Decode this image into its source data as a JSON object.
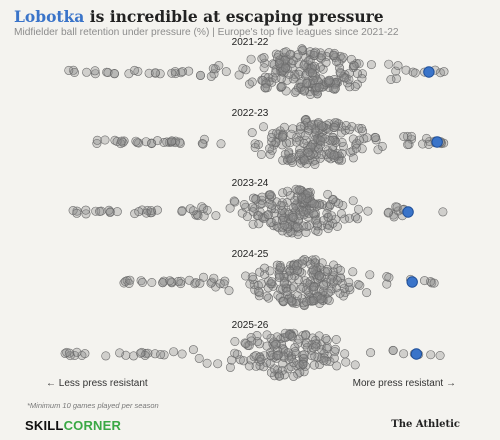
{
  "header": {
    "title_highlight": "Lobotka",
    "title_rest": " is incredible at escaping pressure",
    "subtitle": "Midfielder ball retention under pressure (%) | Europe's top five leagues since 2021-22"
  },
  "colors": {
    "highlight": "#3a74c9",
    "dots": "#7a7a7a",
    "background": "#f4f3ef"
  },
  "chart_data": {
    "type": "scatter",
    "subtype": "beeswarm",
    "title": "Lobotka is incredible at escaping pressure",
    "subtitle": "Midfielder ball retention under pressure (%) | Europe's top five leagues since 2021-22",
    "xlabel": "",
    "ylabel": "",
    "axis_direction": "Less press resistant (left) to More press resistant (right)",
    "highlight_player": "Lobotka",
    "seasons": [
      {
        "label": "2021-22",
        "min": 0.03,
        "max": 0.97,
        "dense_min": 0.45,
        "dense_max": 0.82,
        "count": 240,
        "highlight": 0.93
      },
      {
        "label": "2022-23",
        "min": 0.12,
        "max": 0.98,
        "dense_min": 0.45,
        "dense_max": 0.85,
        "count": 230,
        "highlight": 0.95
      },
      {
        "label": "2023-24",
        "min": 0.06,
        "max": 0.97,
        "dense_min": 0.42,
        "dense_max": 0.8,
        "count": 230,
        "highlight": 0.88
      },
      {
        "label": "2024-25",
        "min": 0.18,
        "max": 0.95,
        "dense_min": 0.45,
        "dense_max": 0.82,
        "count": 220,
        "highlight": 0.89
      },
      {
        "label": "2025-26",
        "min": 0.05,
        "max": 0.97,
        "dense_min": 0.4,
        "dense_max": 0.78,
        "count": 180,
        "highlight": 0.9
      }
    ]
  },
  "footer": {
    "less_label": "← Less press resistant",
    "more_label": "More press resistant →",
    "footnote": "*Minimum 10 games played per season",
    "logo_left_a": "SKILL",
    "logo_left_b": "CORNER",
    "logo_right": "The Athletic"
  }
}
